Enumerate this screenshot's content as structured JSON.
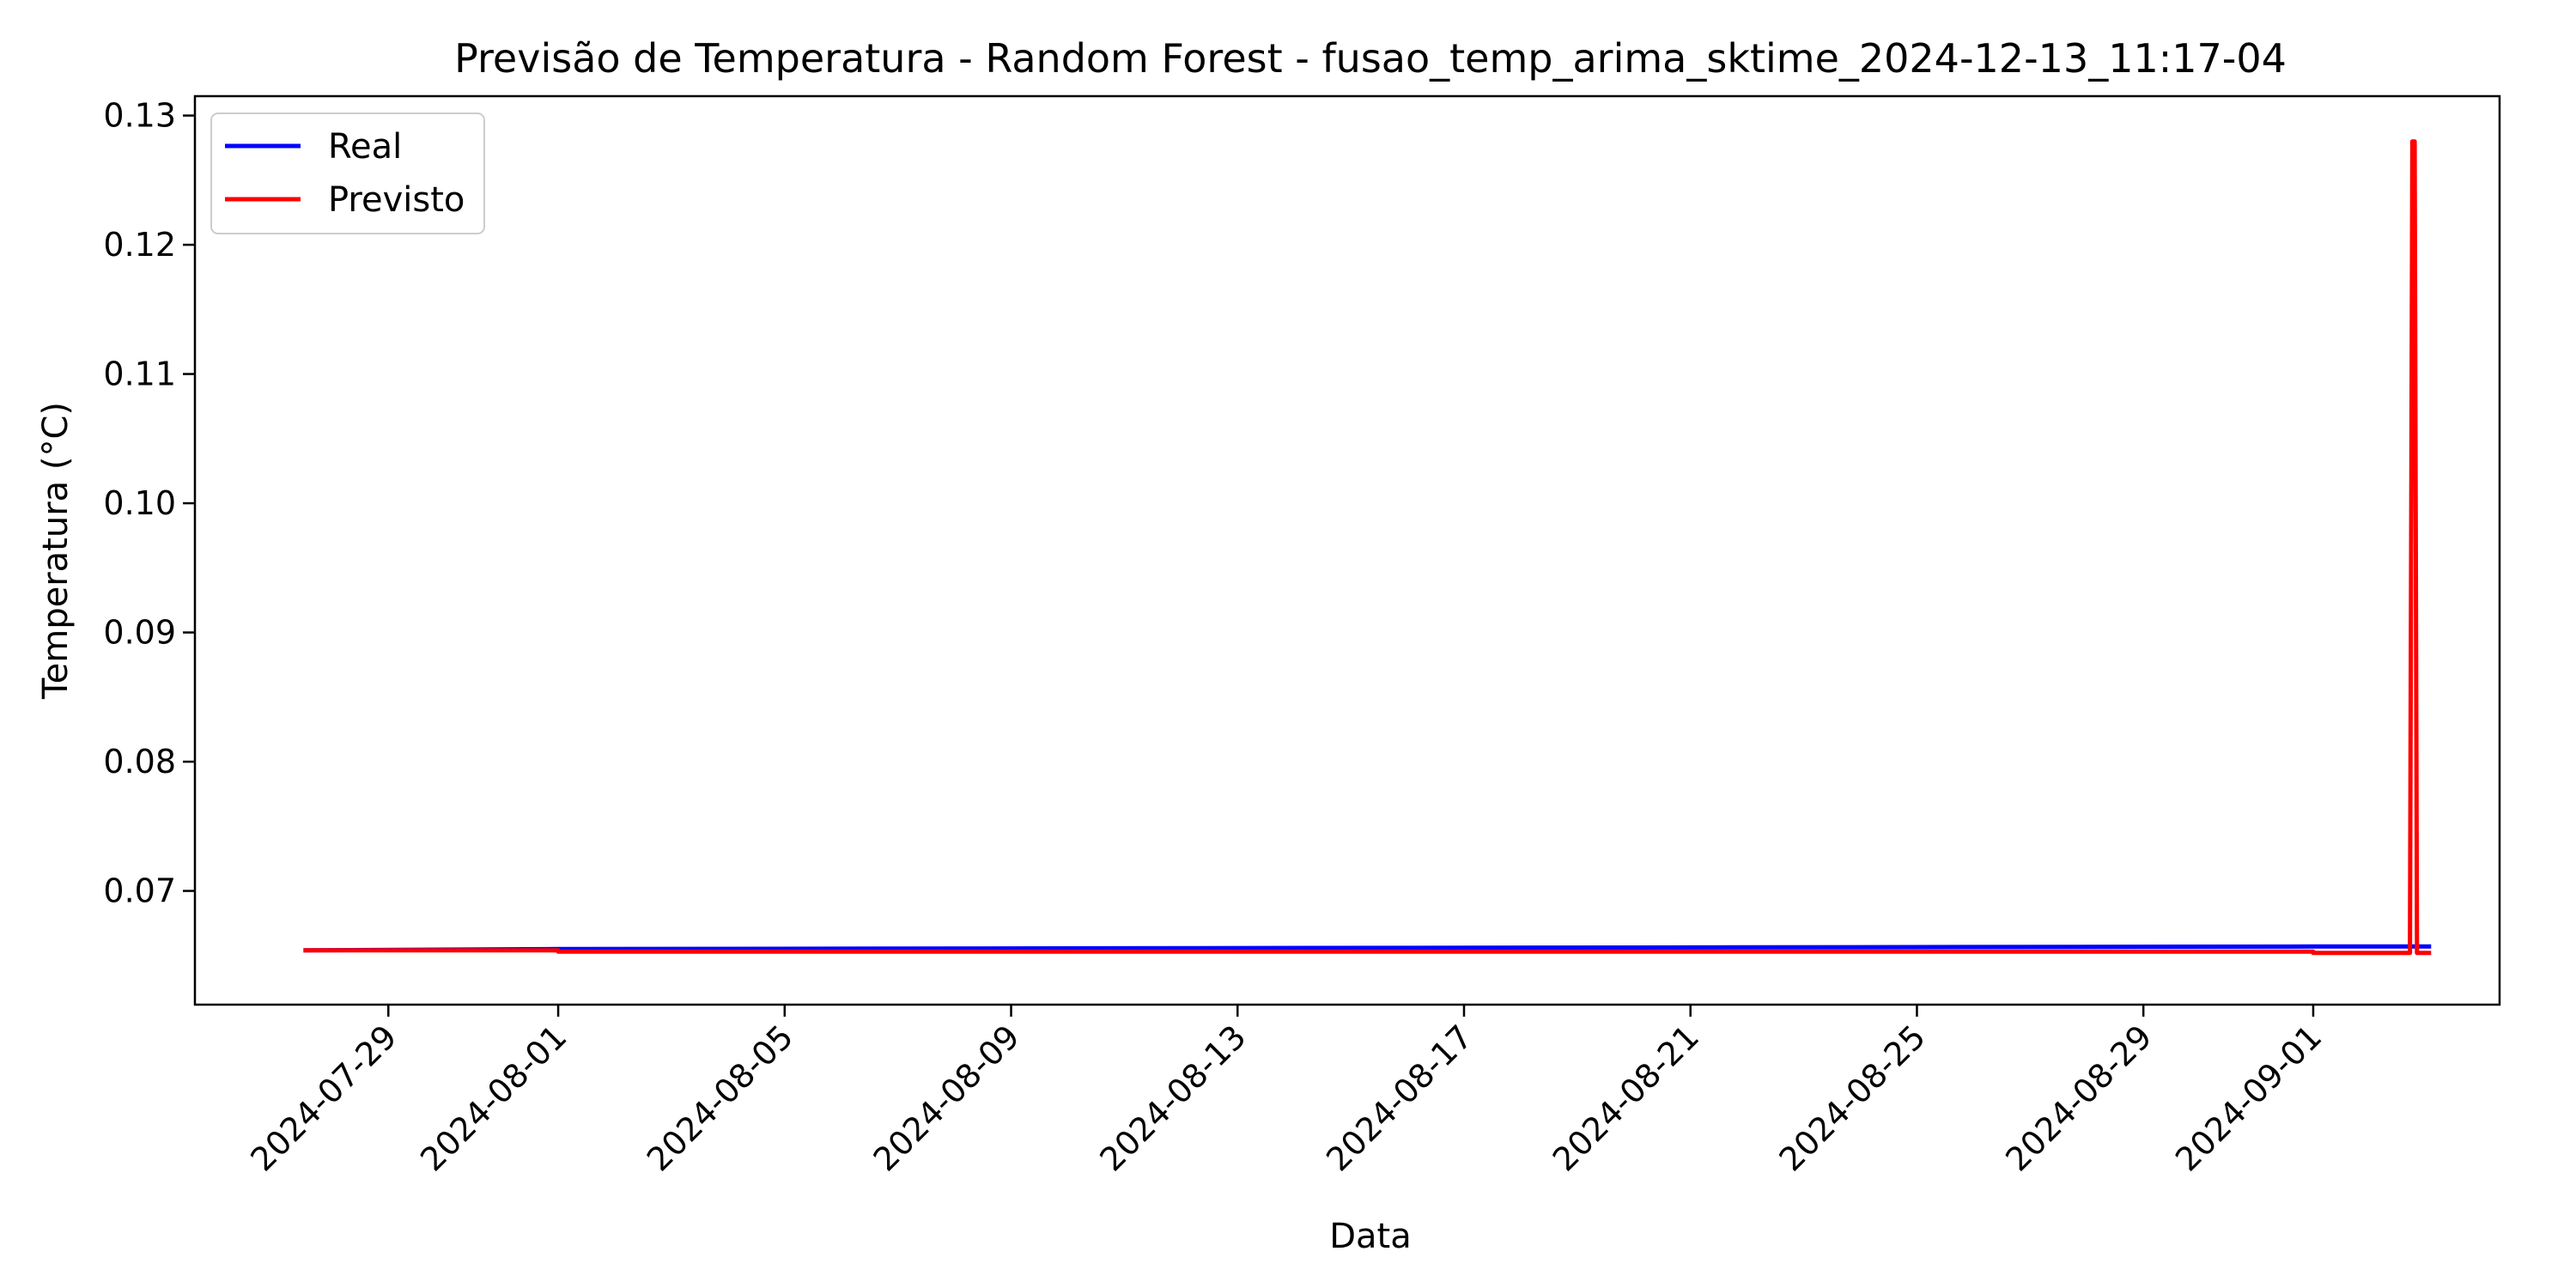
{
  "chart_data": {
    "type": "line",
    "title": "Previsão de Temperatura - Random Forest - fusao_temp_arima_sktime_2024-12-13_11:17-04",
    "xlabel": "Data",
    "ylabel": "Temperatura (°C)",
    "x_ticks": [
      "2024-07-29",
      "2024-08-01",
      "2024-08-05",
      "2024-08-09",
      "2024-08-13",
      "2024-08-17",
      "2024-08-21",
      "2024-08-25",
      "2024-08-29",
      "2024-09-01"
    ],
    "y_ticks": [
      "0.07",
      "0.08",
      "0.09",
      "0.10",
      "0.11",
      "0.12",
      "0.13"
    ],
    "xlim": [
      "2024-07-25T14:00",
      "2024-09-04T07:00"
    ],
    "ylim": [
      0.0612,
      0.1315
    ],
    "grid": false,
    "legend_position": "top-left",
    "series": [
      {
        "name": "Real",
        "color": "#0000ff",
        "x": [
          "2024-07-27T12:00",
          "2024-08-01T00:00",
          "2024-09-01T00:00",
          "2024-09-03T02:00"
        ],
        "values": [
          0.0654,
          0.0655,
          0.0657,
          0.0657
        ]
      },
      {
        "name": "Previsto",
        "color": "#ff0000",
        "x": [
          "2024-07-27T12:00",
          "2024-08-01T00:00",
          "2024-08-01T00:00",
          "2024-09-01T00:00",
          "2024-09-01T00:00",
          "2024-09-02T17:00",
          "2024-09-02T18:00",
          "2024-09-02T19:00",
          "2024-09-02T20:00",
          "2024-09-03T02:00"
        ],
        "values": [
          0.0654,
          0.0654,
          0.0653,
          0.0653,
          0.0652,
          0.0652,
          0.128,
          0.128,
          0.0652,
          0.0652
        ]
      }
    ]
  }
}
